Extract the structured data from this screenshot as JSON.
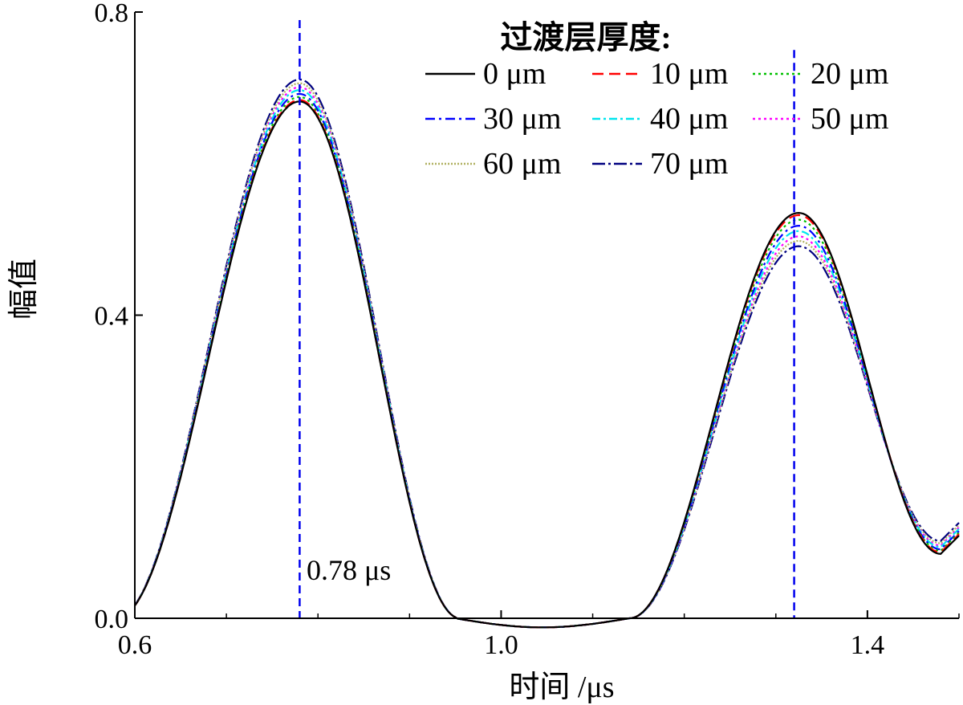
{
  "chart_data": {
    "type": "line",
    "title": "",
    "xlabel": "时间 /μs",
    "ylabel": "幅值",
    "xlim": [
      0.6,
      1.5
    ],
    "ylim": [
      0.0,
      0.8
    ],
    "xticks": [
      0.6,
      1.0,
      1.4
    ],
    "yticks": [
      0.0,
      0.4,
      0.8
    ],
    "xtick_labels": [
      "0.6",
      "1.0",
      "1.4"
    ],
    "ytick_labels": [
      "0.0",
      "0.4",
      "0.8"
    ],
    "grid": false,
    "legend": {
      "title": "过渡层厚度:",
      "position": "top-right",
      "columns": 3
    },
    "vlines": [
      0.78,
      1.32
    ],
    "annotation": "0.78 μs",
    "series": [
      {
        "name": "0 μm",
        "color": "#000000",
        "dash": "",
        "peak1": 0.682,
        "peak2": 0.535,
        "tail": 0.085
      },
      {
        "name": "10 μm",
        "color": "#ff0000",
        "dash": "14 7",
        "peak1": 0.684,
        "peak2": 0.532,
        "tail": 0.087
      },
      {
        "name": "20 μm",
        "color": "#00c000",
        "dash": "3 4",
        "peak1": 0.688,
        "peak2": 0.526,
        "tail": 0.089
      },
      {
        "name": "30 μm",
        "color": "#0000ff",
        "dash": "12 5 3 5",
        "peak1": 0.692,
        "peak2": 0.518,
        "tail": 0.091
      },
      {
        "name": "40 μm",
        "color": "#00e5ee",
        "dash": "10 4 3 4",
        "peak1": 0.697,
        "peak2": 0.511,
        "tail": 0.094
      },
      {
        "name": "50 μm",
        "color": "#ff00ff",
        "dash": "3 4",
        "peak1": 0.701,
        "peak2": 0.504,
        "tail": 0.096
      },
      {
        "name": "60 μm",
        "color": "#b0b060",
        "dash": "2 2",
        "peak1": 0.706,
        "peak2": 0.498,
        "tail": 0.099
      },
      {
        "name": "70 μm",
        "color": "#000080",
        "dash": "16 4 3 4",
        "peak1": 0.711,
        "peak2": 0.491,
        "tail": 0.102
      }
    ]
  }
}
